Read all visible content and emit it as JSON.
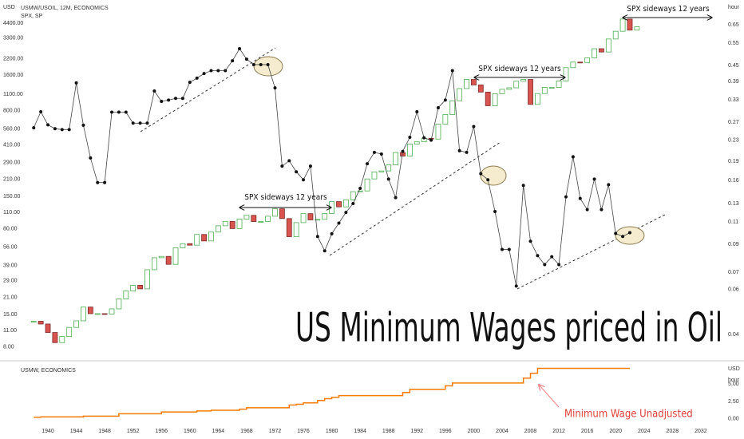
{
  "chart_data": [
    {
      "type": "candlestick",
      "title": "USMW/USOIL, 12M, ECONOMICS",
      "subtitle": "SPX, SP",
      "big_title": "US Minimum Wages priced in Oil",
      "y_unit": "USD",
      "log_scale": true,
      "up_color": "#4caf50",
      "down_color": "#d9534f",
      "annotations": [
        "SPX sideways 12 years",
        "SPX sideways 12 years",
        "SPX sideways 12 years"
      ],
      "x": [
        1938,
        1939,
        1940,
        1941,
        1942,
        1943,
        1944,
        1945,
        1946,
        1947,
        1948,
        1949,
        1950,
        1951,
        1952,
        1953,
        1954,
        1955,
        1956,
        1957,
        1958,
        1959,
        1960,
        1961,
        1962,
        1963,
        1964,
        1965,
        1966,
        1967,
        1968,
        1969,
        1970,
        1971,
        1972,
        1973,
        1974,
        1975,
        1976,
        1977,
        1978,
        1979,
        1980,
        1981,
        1982,
        1983,
        1984,
        1985,
        1986,
        1987,
        1988,
        1989,
        1990,
        1991,
        1992,
        1993,
        1994,
        1995,
        1996,
        1997,
        1998,
        1999,
        2000,
        2001,
        2002,
        2003,
        2004,
        2005,
        2006,
        2007,
        2008,
        2009,
        2010,
        2011,
        2012,
        2013,
        2014,
        2015,
        2016,
        2017,
        2018,
        2019,
        2020,
        2021,
        2022,
        2023
      ],
      "values": [
        13.2,
        12.5,
        10.6,
        8.7,
        9.8,
        11.7,
        13.3,
        17.4,
        15.3,
        15.3,
        15.2,
        16.8,
        20.4,
        23.8,
        26.6,
        24.8,
        36,
        45.5,
        46.7,
        40,
        55.2,
        59.9,
        58.1,
        71.6,
        63.1,
        75,
        84.8,
        92.4,
        80.3,
        96.5,
        103.9,
        92.1,
        92.2,
        102.1,
        118.1,
        97.6,
        68.6,
        90.2,
        107.5,
        95.1,
        96.1,
        107.9,
        135.8,
        122.6,
        140.6,
        164.9,
        167.2,
        211.3,
        242.2,
        247.1,
        277.7,
        353.4,
        330.2,
        417.1,
        435.7,
        466.5,
        459.3,
        615.9,
        740.7,
        970.4,
        1229,
        1469,
        1320,
        1148,
        880,
        1112,
        1212,
        1248,
        1418,
        1468,
        903,
        1115,
        1258,
        1258,
        1426,
        1848,
        2059,
        2044,
        2239,
        2674,
        2507,
        3231,
        3756,
        4766,
        3840,
        4100
      ],
      "xlim": [
        1933.25,
        2035.05
      ],
      "xticks": [
        1940,
        1944,
        1948,
        1952,
        1956,
        1960,
        1964,
        1968,
        1972,
        1976,
        1980,
        1984,
        1988,
        1992,
        1996,
        2000,
        2004,
        2008,
        2012,
        2016,
        2020,
        2024,
        2028,
        2032
      ],
      "ylim": [
        6.3,
        6100
      ],
      "yticks": [
        {
          "value": 4400,
          "label": "4400.00"
        },
        {
          "value": 3300,
          "label": "3300.00"
        },
        {
          "value": 2200,
          "label": "2200.00"
        },
        {
          "value": 1600,
          "label": "1600.00"
        },
        {
          "value": 1100,
          "label": "1100.00"
        },
        {
          "value": 800,
          "label": "800.00"
        },
        {
          "value": 560,
          "label": "560.00"
        },
        {
          "value": 410,
          "label": "410.00"
        },
        {
          "value": 290,
          "label": "290.00"
        },
        {
          "value": 210,
          "label": "210.00"
        },
        {
          "value": 150,
          "label": "150.00"
        },
        {
          "value": 110,
          "label": "110.00"
        },
        {
          "value": 80,
          "label": "80.00"
        },
        {
          "value": 56,
          "label": "56.00"
        },
        {
          "value": 39,
          "label": "39.00"
        },
        {
          "value": 29,
          "label": "29.00"
        },
        {
          "value": 21,
          "label": "21.00"
        },
        {
          "value": 15,
          "label": "15.00"
        },
        {
          "value": 11,
          "label": "11.00"
        },
        {
          "value": 8,
          "label": "8.00"
        }
      ]
    },
    {
      "type": "line",
      "y_unit": "hour",
      "log_scale": true,
      "color": "#444444",
      "x": [
        1938,
        1939,
        1940,
        1941,
        1942,
        1943,
        1944,
        1945,
        1946,
        1947,
        1948,
        1949,
        1950,
        1951,
        1952,
        1953,
        1954,
        1955,
        1956,
        1957,
        1958,
        1959,
        1960,
        1961,
        1962,
        1963,
        1964,
        1965,
        1966,
        1967,
        1968,
        1969,
        1970,
        1971,
        1972,
        1973,
        1974,
        1975,
        1976,
        1977,
        1978,
        1979,
        1980,
        1981,
        1982,
        1983,
        1984,
        1985,
        1986,
        1987,
        1988,
        1989,
        1990,
        1991,
        1992,
        1993,
        1994,
        1995,
        1996,
        1997,
        1998,
        1999,
        2000,
        2001,
        2002,
        2003,
        2004,
        2005,
        2006,
        2007,
        2008,
        2009,
        2010,
        2011,
        2012,
        2013,
        2014,
        2015,
        2016,
        2017,
        2018,
        2019,
        2020,
        2021,
        2022
      ],
      "values": [
        0.257,
        0.297,
        0.264,
        0.255,
        0.253,
        0.253,
        0.385,
        0.263,
        0.196,
        0.157,
        0.157,
        0.296,
        0.296,
        0.296,
        0.268,
        0.268,
        0.268,
        0.358,
        0.326,
        0.33,
        0.335,
        0.335,
        0.387,
        0.402,
        0.419,
        0.43,
        0.43,
        0.43,
        0.47,
        0.524,
        0.477,
        0.454,
        0.454,
        0.454,
        0.368,
        0.182,
        0.191,
        0.173,
        0.161,
        0.182,
        0.0966,
        0.0849,
        0.099,
        0.109,
        0.12,
        0.13,
        0.149,
        0.186,
        0.206,
        0.203,
        0.162,
        0.137,
        0.208,
        0.236,
        0.297,
        0.235,
        0.23,
        0.308,
        0.33,
        0.43,
        0.209,
        0.206,
        0.26,
        0.17,
        0.161,
        0.121,
        0.086,
        0.086,
        0.0618,
        0.153,
        0.0925,
        0.0813,
        0.075,
        0.0805,
        0.075,
        0.138,
        0.198,
        0.136,
        0.123,
        0.162,
        0.123,
        0.154,
        0.0993,
        0.0966,
        0.1
      ],
      "ylim": [
        0.032,
        0.767
      ],
      "yticks": [
        0.65,
        0.55,
        0.45,
        0.39,
        0.33,
        0.27,
        0.23,
        0.19,
        0.16,
        0.13,
        0.11,
        0.09,
        0.07,
        0.06,
        0.04
      ]
    },
    {
      "type": "step",
      "title": "USMW, ECONOMICS",
      "y_unit": "USD",
      "y_unit2": "hour",
      "color": "#f57c00",
      "annotation": "Minimum Wage Unadjusted",
      "x": [
        1938,
        1939,
        1945,
        1950,
        1956,
        1961,
        1963,
        1967,
        1968,
        1974,
        1975,
        1976,
        1978,
        1979,
        1980,
        1981,
        1990,
        1991,
        1996,
        1997,
        2007,
        2008,
        2009,
        2022
      ],
      "values": [
        0.25,
        0.3,
        0.4,
        0.75,
        1,
        1.15,
        1.25,
        1.4,
        1.6,
        2,
        2.1,
        2.3,
        2.65,
        2.9,
        3.1,
        3.35,
        3.8,
        4.25,
        4.75,
        5.15,
        5.85,
        6.55,
        7.25,
        7.25
      ],
      "ylim": [
        -1.5,
        8
      ],
      "yticks": [
        {
          "value": 5,
          "label": "5.00"
        },
        {
          "value": 2.5,
          "label": "2.50"
        },
        {
          "value": 0,
          "label": "0.00"
        }
      ]
    }
  ]
}
